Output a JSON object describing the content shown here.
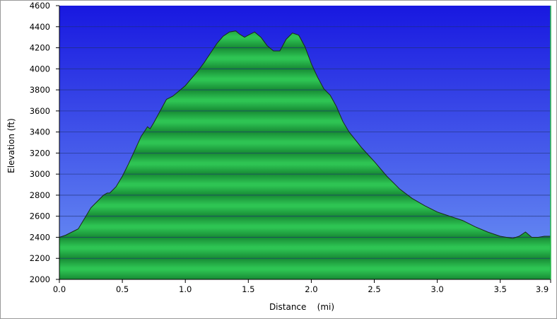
{
  "chart_data": {
    "type": "area",
    "title": "",
    "xlabel": "Distance    (mi)",
    "ylabel": "Elevation (ft)",
    "xlim": [
      0,
      3.9
    ],
    "ylim": [
      2000,
      4600
    ],
    "x_ticks": [
      0,
      0.5,
      1,
      1.5,
      2,
      2.5,
      3,
      3.5,
      3.9
    ],
    "x_tick_labels": [
      "0.0",
      "0.5",
      "1.0",
      "1.5",
      "2.0",
      "2.5",
      "3.0",
      "3.5",
      "3.9"
    ],
    "y_ticks": [
      2000,
      2200,
      2400,
      2600,
      2800,
      3000,
      3200,
      3400,
      3600,
      3800,
      4000,
      4200,
      4400,
      4600
    ],
    "y_tick_labels": [
      "2000",
      "2200",
      "2400",
      "2600",
      "2800",
      "3000",
      "3200",
      "3400",
      "3600",
      "3800",
      "4000",
      "4200",
      "4400",
      "4600"
    ],
    "grid": "horizontal",
    "legend": "none",
    "colors": {
      "sky_top": "#1818e0",
      "sky_bottom": "#6e96f4",
      "fill": "#26b54a",
      "fill_dark": "#178a34",
      "outline": "#1a2a1a",
      "grid": "#1d2f6e"
    },
    "series": [
      {
        "x": [
          0,
          0.05,
          0.1,
          0.15,
          0.2,
          0.25,
          0.3,
          0.35,
          0.38,
          0.4,
          0.45,
          0.5,
          0.55,
          0.6,
          0.65,
          0.7,
          0.72,
          0.75,
          0.8,
          0.85,
          0.9,
          0.95,
          1.0,
          1.05,
          1.1,
          1.15,
          1.2,
          1.25,
          1.3,
          1.35,
          1.4,
          1.43,
          1.47,
          1.5,
          1.55,
          1.6,
          1.65,
          1.7,
          1.75,
          1.8,
          1.85,
          1.9,
          1.95,
          2.0,
          2.05,
          2.1,
          2.15,
          2.2,
          2.25,
          2.3,
          2.4,
          2.5,
          2.6,
          2.7,
          2.8,
          2.9,
          3.0,
          3.1,
          3.2,
          3.3,
          3.4,
          3.5,
          3.55,
          3.6,
          3.65,
          3.7,
          3.75,
          3.8,
          3.85,
          3.9
        ],
        "y": [
          2400,
          2420,
          2450,
          2480,
          2580,
          2680,
          2740,
          2800,
          2820,
          2820,
          2880,
          2980,
          3100,
          3230,
          3360,
          3450,
          3430,
          3490,
          3600,
          3710,
          3740,
          3790,
          3840,
          3910,
          3980,
          4060,
          4150,
          4240,
          4310,
          4350,
          4360,
          4330,
          4300,
          4320,
          4350,
          4300,
          4220,
          4170,
          4170,
          4280,
          4340,
          4320,
          4210,
          4050,
          3920,
          3810,
          3750,
          3640,
          3500,
          3400,
          3250,
          3120,
          2980,
          2860,
          2770,
          2700,
          2640,
          2600,
          2560,
          2500,
          2450,
          2410,
          2400,
          2390,
          2410,
          2450,
          2400,
          2400,
          2410,
          2410
        ]
      }
    ]
  }
}
